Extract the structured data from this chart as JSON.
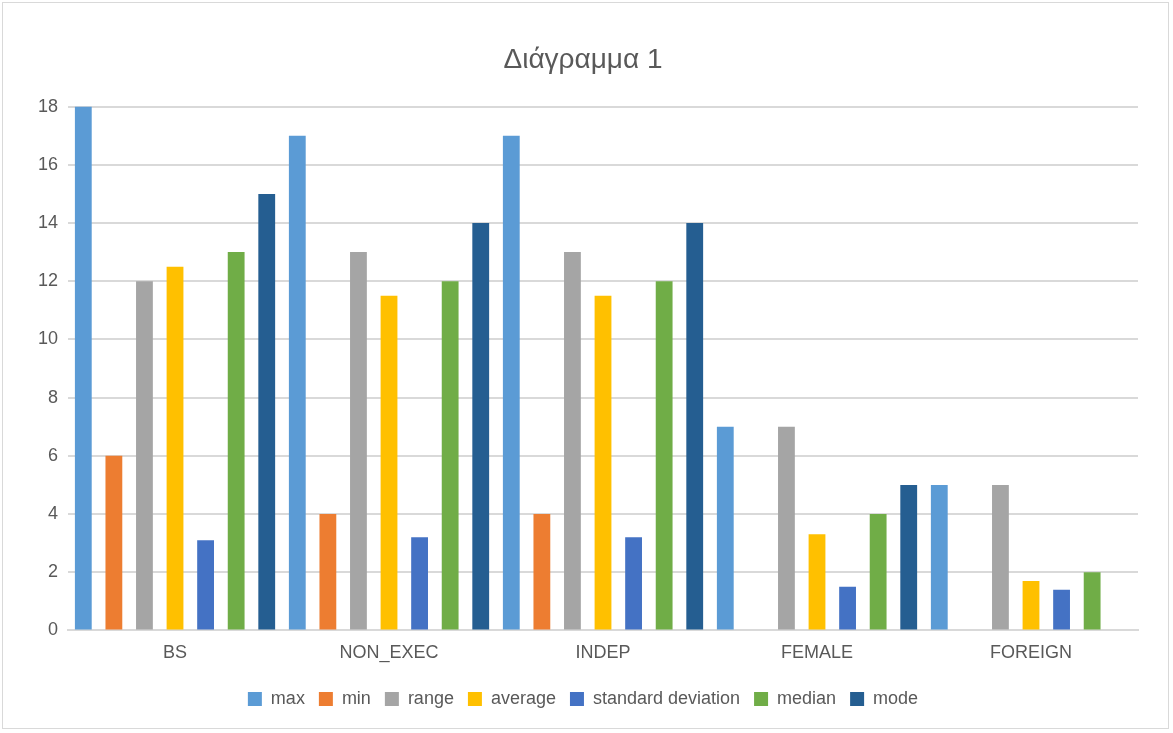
{
  "chart_data": {
    "type": "bar",
    "title": "Διάγραμμα 1",
    "categories": [
      "BS",
      "NON_EXEC",
      "INDEP",
      "FEMALE",
      "FOREIGN"
    ],
    "series": [
      {
        "name": "max",
        "color": "#5b9bd5",
        "values": [
          18,
          17,
          17,
          7,
          5
        ]
      },
      {
        "name": "min",
        "color": "#ed7d31",
        "values": [
          6,
          4,
          4,
          0,
          0
        ]
      },
      {
        "name": "range",
        "color": "#a5a5a5",
        "values": [
          12,
          13,
          13,
          7,
          5
        ]
      },
      {
        "name": "average",
        "color": "#ffc000",
        "values": [
          12.5,
          11.5,
          11.5,
          3.3,
          1.7
        ]
      },
      {
        "name": "standard deviation",
        "color": "#4472c4",
        "values": [
          3.1,
          3.2,
          3.2,
          1.5,
          1.4
        ]
      },
      {
        "name": "median",
        "color": "#70ad47",
        "values": [
          13,
          12,
          12,
          4,
          2
        ]
      },
      {
        "name": "mode",
        "color": "#255e91",
        "values": [
          15,
          14,
          14,
          5,
          0
        ]
      }
    ],
    "ylim": [
      0,
      18
    ],
    "yticks": [
      0,
      2,
      4,
      6,
      8,
      10,
      12,
      14,
      16,
      18
    ],
    "grid": "y",
    "legend": "bottom"
  }
}
